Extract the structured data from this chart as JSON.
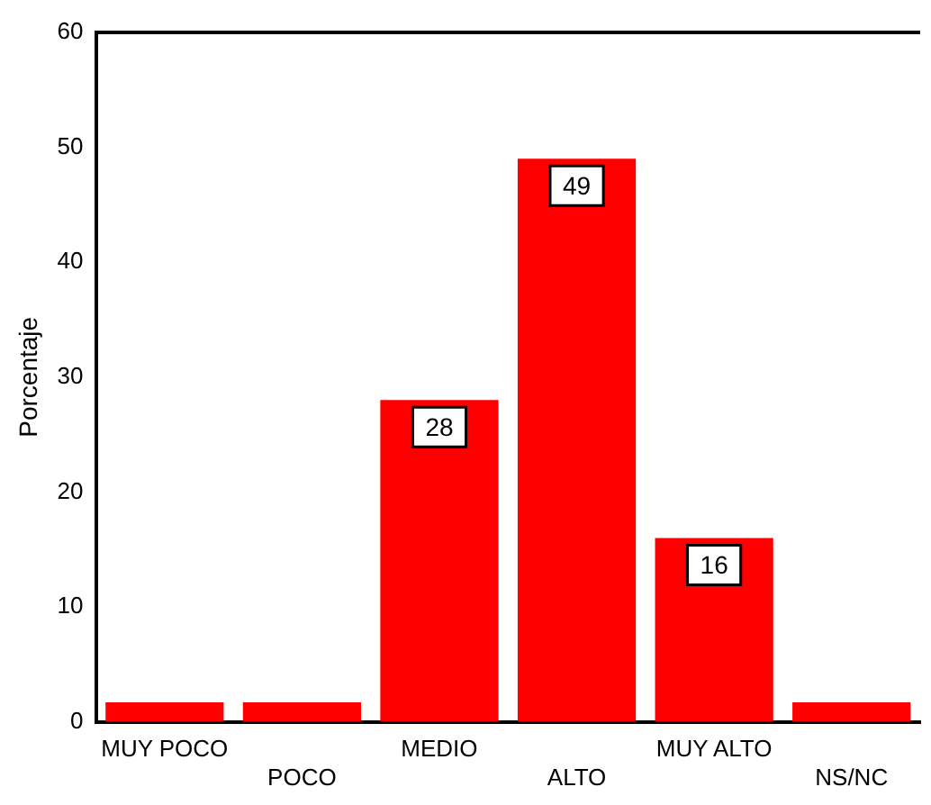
{
  "chart_data": {
    "type": "bar",
    "ylabel": "Porcentaje",
    "categories": [
      "MUY POCO",
      "POCO",
      "MEDIO",
      "ALTO",
      "MUY ALTO",
      "NS/NC"
    ],
    "values": [
      1.7,
      1.7,
      28,
      49,
      16,
      1.7
    ],
    "value_labels": [
      null,
      null,
      "28",
      "49",
      "16",
      null
    ],
    "color": "#ff0000",
    "ylim": [
      0,
      60
    ],
    "yticks": [
      0,
      10,
      20,
      30,
      40,
      50,
      60
    ],
    "grid": false,
    "legend": false
  }
}
